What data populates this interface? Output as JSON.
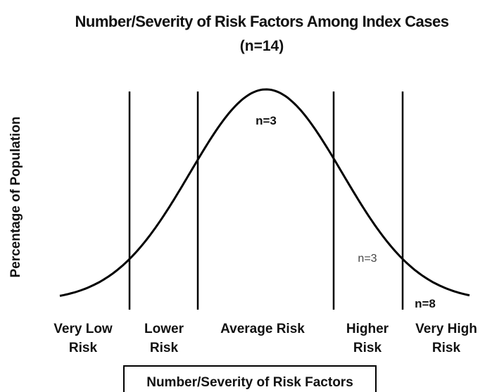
{
  "title": "Number/Severity of Risk Factors Among Index Cases",
  "subtitle": "(n=14)",
  "y_axis_label": "Percentage of Population",
  "regions": [
    {
      "lines": [
        "Very Low",
        "Risk"
      ]
    },
    {
      "lines": [
        "Lower",
        "Risk"
      ]
    },
    {
      "lines": [
        "Average Risk"
      ]
    },
    {
      "lines": [
        "Higher",
        "Risk"
      ]
    },
    {
      "lines": [
        "Very High",
        "Risk"
      ]
    }
  ],
  "annotations": [
    "n=3",
    "n=3",
    "n=8"
  ],
  "x_axis_label": "Number/Severity of Risk Factors"
}
